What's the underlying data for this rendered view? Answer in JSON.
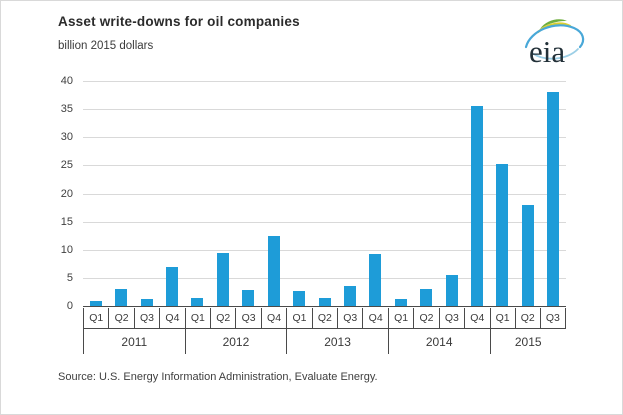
{
  "header": {
    "title": "Asset write-downs for oil companies",
    "subtitle": "billion 2015 dollars",
    "logo_text": "eia"
  },
  "chart_data": {
    "type": "bar",
    "title": "Asset write-downs for oil companies",
    "ylabel": "billion 2015 dollars",
    "ylim": [
      0,
      40
    ],
    "yticks": [
      0,
      5,
      10,
      15,
      20,
      25,
      30,
      35,
      40
    ],
    "grid": "horizontal",
    "legend": "none",
    "bar_color": "#1E9CD8",
    "gridline_color": "#d9d9d9",
    "axis_color": "#4a4a4a",
    "groups": [
      {
        "year": "2011",
        "quarters": [
          "Q1",
          "Q2",
          "Q3",
          "Q4"
        ],
        "values": [
          0.9,
          3.1,
          1.3,
          6.9
        ]
      },
      {
        "year": "2012",
        "quarters": [
          "Q1",
          "Q2",
          "Q3",
          "Q4"
        ],
        "values": [
          1.4,
          9.5,
          2.9,
          12.5
        ]
      },
      {
        "year": "2013",
        "quarters": [
          "Q1",
          "Q2",
          "Q3",
          "Q4"
        ],
        "values": [
          2.6,
          1.4,
          3.6,
          9.2
        ]
      },
      {
        "year": "2014",
        "quarters": [
          "Q1",
          "Q2",
          "Q3",
          "Q4"
        ],
        "values": [
          1.2,
          3.0,
          5.5,
          35.5
        ]
      },
      {
        "year": "2015",
        "quarters": [
          "Q1",
          "Q2",
          "Q3"
        ],
        "values": [
          25.2,
          18.0,
          38.0
        ]
      }
    ]
  },
  "footer": {
    "source": "Source:  U.S. Energy Information Administration, Evaluate Energy."
  }
}
